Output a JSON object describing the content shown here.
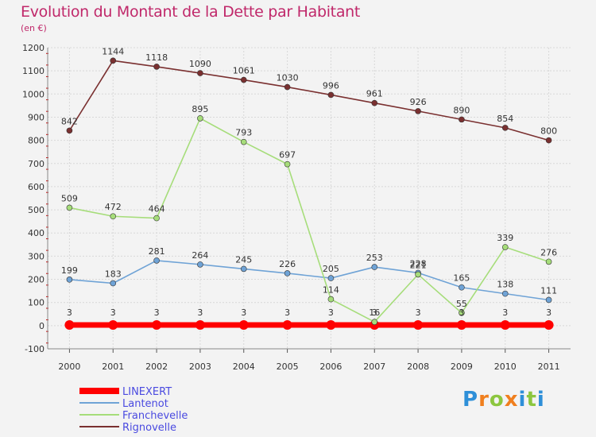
{
  "title": "Evolution du Montant de la Dette par Habitant",
  "subtitle": "(en €)",
  "brand": {
    "letters": [
      "P",
      "r",
      "o",
      "x",
      "i",
      "t",
      "i"
    ],
    "colors": [
      "#2e8fd8",
      "#f07f1e",
      "#8cc63f",
      "#f07f1e",
      "#2e8fd8",
      "#8cc63f",
      "#2e8fd8"
    ]
  },
  "chart_data": {
    "type": "line",
    "x": [
      "2000",
      "2001",
      "2002",
      "2003",
      "2004",
      "2005",
      "2006",
      "2007",
      "2008",
      "2009",
      "2010",
      "2011"
    ],
    "ylim": [
      -100,
      1200
    ],
    "yticks": [
      -100,
      0,
      100,
      200,
      300,
      400,
      500,
      600,
      700,
      800,
      900,
      1000,
      1100,
      1200
    ],
    "grid": true,
    "legend": "bottom-left",
    "series": [
      {
        "name": "LINEXERT",
        "color": "#ff0000",
        "values": [
          3,
          3,
          3,
          3,
          3,
          3,
          3,
          3,
          3,
          3,
          3,
          3
        ]
      },
      {
        "name": "Lantenot",
        "color": "#6fa3d6",
        "values": [
          199,
          183,
          281,
          264,
          245,
          226,
          205,
          253,
          228,
          165,
          138,
          111
        ]
      },
      {
        "name": "Franchevelle",
        "color": "#a6dd7a",
        "values": [
          509,
          472,
          464,
          895,
          793,
          697,
          114,
          16,
          221,
          55,
          339,
          276
        ]
      },
      {
        "name": "Rignovelle",
        "color": "#7a3030",
        "values": [
          842,
          1144,
          1118,
          1090,
          1061,
          1030,
          996,
          961,
          926,
          890,
          854,
          800
        ]
      }
    ]
  }
}
